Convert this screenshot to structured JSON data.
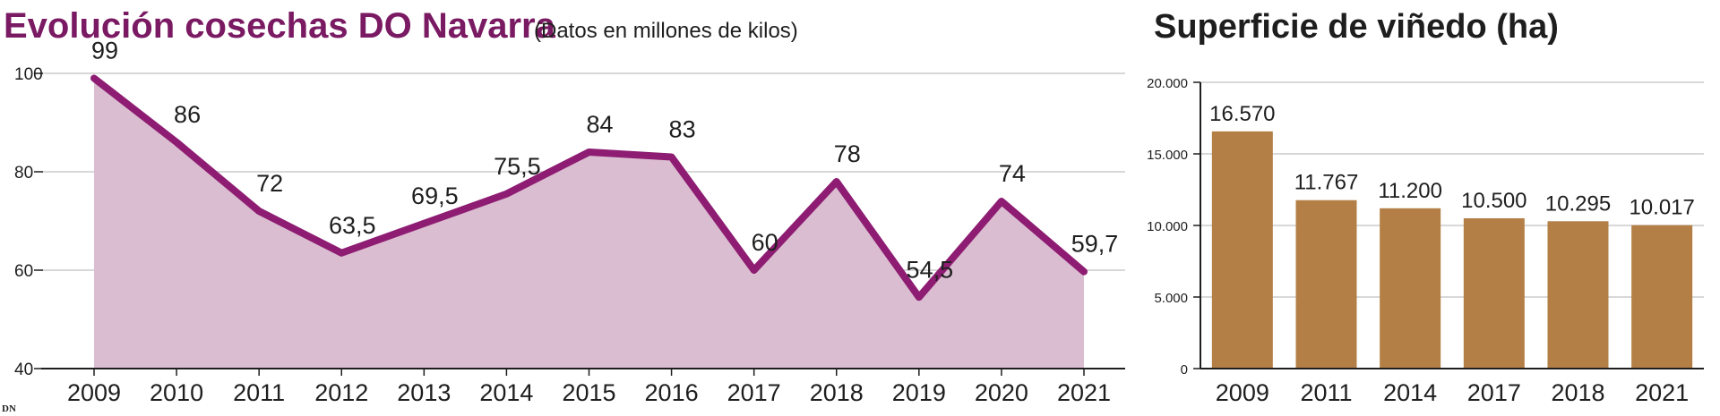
{
  "colors": {
    "line": "#8d1c72",
    "area": "#dbbdd1",
    "bar": "#b47f46",
    "text": "#1e1e1e",
    "grid": "#cccccc",
    "left_title": "#7a1a63"
  },
  "footer": {
    "logo_text": "DN"
  },
  "chart_data": [
    {
      "type": "area",
      "title": "Evolución cosechas DO Navarra",
      "subtitle": "(Datos en millones de kilos)",
      "x": [
        "2009",
        "2010",
        "2011",
        "2012",
        "2013",
        "2014",
        "2015",
        "2016",
        "2017",
        "2018",
        "2019",
        "2020",
        "2021"
      ],
      "values": [
        99,
        86,
        72,
        63.5,
        69.5,
        75.5,
        84,
        83,
        60,
        78,
        54.5,
        74,
        59.7
      ],
      "data_labels": [
        "99",
        "86",
        "72",
        "63,5",
        "69,5",
        "75,5",
        "84",
        "83",
        "60",
        "78",
        "54,5",
        "74",
        "59,7"
      ],
      "y_ticks": [
        "100",
        "80",
        "60",
        "40"
      ],
      "ylim": [
        40,
        100
      ],
      "grid": true
    },
    {
      "type": "bar",
      "title": "Superficie de viñedo (ha)",
      "categories": [
        "2009",
        "2011",
        "2014",
        "2017",
        "2018",
        "2021"
      ],
      "values": [
        16570,
        11767,
        11200,
        10500,
        10295,
        10017
      ],
      "data_labels": [
        "16.570",
        "11.767",
        "11.200",
        "10.500",
        "10.295",
        "10.017"
      ],
      "y_ticks": [
        "20.000",
        "15.000",
        "10.000",
        "5.000",
        "0"
      ],
      "ylim": [
        0,
        20000
      ],
      "grid": true
    }
  ]
}
